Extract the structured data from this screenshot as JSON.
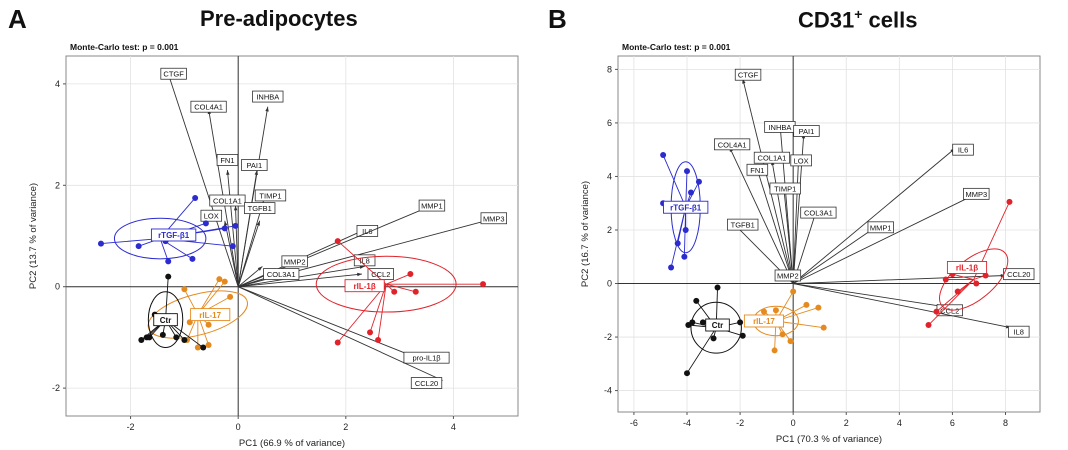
{
  "chart_data": [
    {
      "type": "scatter",
      "panel_label": "A",
      "title": "Pre-adipocytes",
      "test_label": "Monte-Carlo test: p =  0.001",
      "xlabel": "PC1 (66.9 % of variance)",
      "ylabel": "PC2 (13.7 % of variance)",
      "xlim": [
        -3.2,
        5.2
      ],
      "ylim": [
        -2.55,
        4.55
      ],
      "xticks": [
        -2,
        0,
        2,
        4
      ],
      "yticks": [
        -2,
        0,
        2,
        4
      ],
      "grid": true,
      "loadings": [
        {
          "label": "CTGF",
          "x": -1.3,
          "y": 4.2,
          "tx": -1.2,
          "ty": 4.2
        },
        {
          "label": "COL4A1",
          "x": -0.55,
          "y": 3.5,
          "tx": -0.55,
          "ty": 3.55
        },
        {
          "label": "INHBA",
          "x": 0.55,
          "y": 3.55,
          "tx": 0.55,
          "ty": 3.75
        },
        {
          "label": "FN1",
          "x": -0.2,
          "y": 2.3,
          "tx": -0.2,
          "ty": 2.5
        },
        {
          "label": "PAI1",
          "x": 0.35,
          "y": 2.3,
          "tx": 0.3,
          "ty": 2.4
        },
        {
          "label": "COL1A1",
          "x": -0.05,
          "y": 1.6,
          "tx": -0.2,
          "ty": 1.7
        },
        {
          "label": "LOX",
          "x": -0.25,
          "y": 1.3,
          "tx": -0.5,
          "ty": 1.4
        },
        {
          "label": "TIMP1",
          "x": 0.5,
          "y": 1.8,
          "tx": 0.6,
          "ty": 1.8
        },
        {
          "label": "TGFB1",
          "x": 0.4,
          "y": 1.3,
          "tx": 0.4,
          "ty": 1.55
        },
        {
          "label": "IL6",
          "x": 2.3,
          "y": 1.1,
          "tx": 2.4,
          "ty": 1.1
        },
        {
          "label": "MMP1",
          "x": 3.6,
          "y": 1.6,
          "tx": 3.6,
          "ty": 1.6
        },
        {
          "label": "MMP3",
          "x": 4.6,
          "y": 1.3,
          "tx": 4.75,
          "ty": 1.35
        },
        {
          "label": "MMP2",
          "x": 0.45,
          "y": 0.4,
          "tx": 1.05,
          "ty": 0.5
        },
        {
          "label": "IL8",
          "x": 2.35,
          "y": 0.4,
          "tx": 2.35,
          "ty": 0.52
        },
        {
          "label": "COL3A1",
          "x": 0.6,
          "y": 0.2,
          "tx": 0.8,
          "ty": 0.25
        },
        {
          "label": "CCL2",
          "x": 2.3,
          "y": 0.25,
          "tx": 2.65,
          "ty": 0.25
        },
        {
          "label": "pro-IL1β",
          "x": 3.2,
          "y": -1.35,
          "tx": 3.5,
          "ty": -1.4
        },
        {
          "label": "CCL20",
          "x": 3.8,
          "y": -1.85,
          "tx": 3.5,
          "ty": -1.9
        }
      ],
      "groups": [
        {
          "label": "rTGF-β1",
          "color": "#2b2bd0",
          "center": [
            -1.45,
            0.95
          ],
          "label_pos": [
            -1.2,
            1.02
          ],
          "ellipse": {
            "rx": 0.85,
            "ry": 0.4,
            "angle": 0
          },
          "points": [
            [
              -2.55,
              0.85
            ],
            [
              -1.85,
              0.8
            ],
            [
              -1.3,
              0.5
            ],
            [
              -1.35,
              0.9
            ],
            [
              -0.85,
              0.55
            ],
            [
              -0.6,
              1.25
            ],
            [
              -0.25,
              1.15
            ],
            [
              -0.05,
              1.2
            ],
            [
              -0.1,
              0.8
            ],
            [
              -0.8,
              1.75
            ]
          ]
        },
        {
          "label": "rIL-17",
          "color": "#e58a1f",
          "center": [
            -0.75,
            -0.55
          ],
          "label_pos": [
            -0.52,
            -0.55
          ],
          "ellipse": {
            "rx": 0.95,
            "ry": 0.4,
            "angle": -15
          },
          "points": [
            [
              -0.35,
              0.15
            ],
            [
              -0.25,
              0.1
            ],
            [
              -0.15,
              -0.2
            ],
            [
              -0.55,
              -0.75
            ],
            [
              -0.75,
              -1.2
            ],
            [
              -0.95,
              -1.05
            ],
            [
              -0.55,
              -1.15
            ],
            [
              -1.0,
              -0.05
            ],
            [
              -0.9,
              -0.7
            ]
          ]
        },
        {
          "label": "rIL-1β",
          "color": "#e0232b",
          "center": [
            2.75,
            0.05
          ],
          "label_pos": [
            2.35,
            0.02
          ],
          "ellipse": {
            "rx": 1.3,
            "ry": 0.55,
            "angle": 0
          },
          "points": [
            [
              1.85,
              0.9
            ],
            [
              2.55,
              0.05
            ],
            [
              3.2,
              0.25
            ],
            [
              4.55,
              0.05
            ],
            [
              2.9,
              -0.1
            ],
            [
              2.45,
              -0.9
            ],
            [
              2.6,
              -1.05
            ],
            [
              3.3,
              -0.1
            ],
            [
              1.85,
              -1.1
            ]
          ]
        },
        {
          "label": "Ctr",
          "color": "#111111",
          "center": [
            -1.35,
            -0.65
          ],
          "label_pos": [
            -1.35,
            -0.65
          ],
          "ellipse": {
            "rx": 0.32,
            "ry": 0.55,
            "angle": 0
          },
          "points": [
            [
              -1.3,
              0.2
            ],
            [
              -1.55,
              -0.55
            ],
            [
              -1.8,
              -1.05
            ],
            [
              -1.7,
              -1.0
            ],
            [
              -1.65,
              -1.0
            ],
            [
              -1.4,
              -0.95
            ],
            [
              -1.15,
              -1.0
            ],
            [
              -0.65,
              -1.2
            ],
            [
              -1.0,
              -1.05
            ]
          ]
        }
      ]
    },
    {
      "type": "scatter",
      "panel_label": "B",
      "title": "CD31",
      "title_superscript": "+",
      "title_suffix": " cells",
      "test_label": "Monte-Carlo test: p =  0.001",
      "xlabel": "PC1 (70.3 % of variance)",
      "ylabel": "PC2 (16.7 % of variance)",
      "xlim": [
        -6.6,
        9.3
      ],
      "ylim": [
        -4.8,
        8.5
      ],
      "xticks": [
        -6,
        -4,
        -2,
        0,
        2,
        4,
        6,
        8
      ],
      "yticks": [
        -4,
        -2,
        0,
        2,
        4,
        6,
        8
      ],
      "grid": true,
      "loadings": [
        {
          "label": "CTGF",
          "x": -1.9,
          "y": 7.65,
          "tx": -1.7,
          "ty": 7.8
        },
        {
          "label": "INHBA",
          "x": -0.5,
          "y": 6.0,
          "tx": -0.5,
          "ty": 5.85
        },
        {
          "label": "PAI1",
          "x": 0.4,
          "y": 5.6,
          "tx": 0.5,
          "ty": 5.7
        },
        {
          "label": "COL4A1",
          "x": -2.4,
          "y": 5.1,
          "tx": -2.3,
          "ty": 5.2
        },
        {
          "label": "COL1A1",
          "x": -0.8,
          "y": 4.6,
          "tx": -0.8,
          "ty": 4.7
        },
        {
          "label": "LOX",
          "x": 0.2,
          "y": 4.6,
          "tx": 0.3,
          "ty": 4.6
        },
        {
          "label": "FN1",
          "x": -1.35,
          "y": 4.25,
          "tx": -1.35,
          "ty": 4.25
        },
        {
          "label": "TIMP1",
          "x": -0.35,
          "y": 3.55,
          "tx": -0.3,
          "ty": 3.55
        },
        {
          "label": "IL6",
          "x": 6.1,
          "y": 5.05,
          "tx": 6.4,
          "ty": 5.0
        },
        {
          "label": "MMP3",
          "x": 6.8,
          "y": 3.3,
          "tx": 6.9,
          "ty": 3.35
        },
        {
          "label": "COL3A1",
          "x": 0.85,
          "y": 2.65,
          "tx": 0.95,
          "ty": 2.65
        },
        {
          "label": "TGFB1",
          "x": -2.2,
          "y": 2.2,
          "tx": -1.9,
          "ty": 2.2
        },
        {
          "label": "MMP1",
          "x": 3.1,
          "y": 2.1,
          "tx": 3.3,
          "ty": 2.1
        },
        {
          "label": "MMP2",
          "x": 0.0,
          "y": 0.35,
          "tx": -0.2,
          "ty": 0.3
        },
        {
          "label": "CCL20",
          "x": 8.0,
          "y": 0.3,
          "tx": 8.5,
          "ty": 0.35
        },
        {
          "label": "CCL2",
          "x": 5.6,
          "y": -0.85,
          "tx": 5.9,
          "ty": -1.0
        },
        {
          "label": "IL8",
          "x": 8.2,
          "y": -1.65,
          "tx": 8.5,
          "ty": -1.8
        }
      ],
      "groups": [
        {
          "label": "rTGF-β1",
          "color": "#2b2bd0",
          "center": [
            -4.05,
            2.85
          ],
          "label_pos": [
            -4.05,
            2.85
          ],
          "ellipse": {
            "rx": 0.55,
            "ry": 1.7,
            "angle": 0
          },
          "points": [
            [
              -4.9,
              4.8
            ],
            [
              -4.9,
              3.0
            ],
            [
              -4.0,
              4.2
            ],
            [
              -3.55,
              3.8
            ],
            [
              -3.85,
              3.4
            ],
            [
              -4.05,
              2.0
            ],
            [
              -4.35,
              1.5
            ],
            [
              -4.1,
              1.0
            ],
            [
              -4.6,
              0.6
            ]
          ]
        },
        {
          "label": "rIL-17",
          "color": "#e58a1f",
          "center": [
            -0.65,
            -1.4
          ],
          "label_pos": [
            -1.1,
            -1.4
          ],
          "ellipse": {
            "rx": 0.85,
            "ry": 0.55,
            "angle": 0
          },
          "points": [
            [
              0.0,
              -0.3
            ],
            [
              0.5,
              -0.8
            ],
            [
              0.95,
              -0.9
            ],
            [
              1.15,
              -1.65
            ],
            [
              -0.1,
              -2.15
            ],
            [
              -0.4,
              -1.9
            ],
            [
              -0.7,
              -2.5
            ],
            [
              -1.1,
              -1.05
            ],
            [
              -1.2,
              -1.4
            ],
            [
              -0.65,
              -1.0
            ]
          ]
        },
        {
          "label": "rIL-1β",
          "color": "#e0232b",
          "center": [
            6.8,
            0.15
          ],
          "label_pos": [
            6.55,
            0.6
          ],
          "ellipse": {
            "rx": 1.55,
            "ry": 0.75,
            "angle": -40
          },
          "points": [
            [
              8.15,
              3.05
            ],
            [
              5.75,
              0.15
            ],
            [
              6.0,
              0.35
            ],
            [
              7.25,
              0.3
            ],
            [
              6.9,
              0.0
            ],
            [
              6.2,
              -0.3
            ],
            [
              5.4,
              -1.05
            ],
            [
              5.1,
              -1.55
            ]
          ]
        },
        {
          "label": "Ctr",
          "color": "#111111",
          "center": [
            -2.9,
            -1.65
          ],
          "label_pos": [
            -2.85,
            -1.55
          ],
          "ellipse": {
            "rx": 0.95,
            "ry": 0.95,
            "angle": 0
          },
          "points": [
            [
              -2.85,
              -0.15
            ],
            [
              -3.65,
              -0.65
            ],
            [
              -3.95,
              -1.55
            ],
            [
              -3.8,
              -1.45
            ],
            [
              -3.4,
              -1.45
            ],
            [
              -2.0,
              -1.45
            ],
            [
              -1.9,
              -1.95
            ],
            [
              -3.0,
              -2.05
            ],
            [
              -4.0,
              -3.35
            ]
          ]
        }
      ]
    }
  ]
}
